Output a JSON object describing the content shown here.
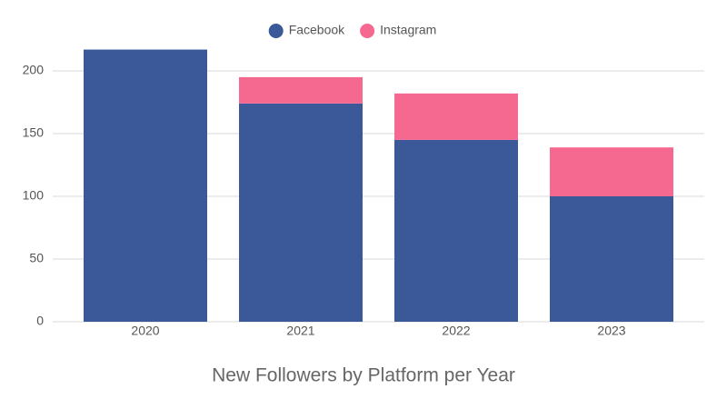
{
  "chart_data": {
    "type": "stacked-bar",
    "title": "New Followers by Platform per Year",
    "categories": [
      "2020",
      "2021",
      "2022",
      "2023"
    ],
    "series": [
      {
        "name": "Facebook",
        "color": "#3b5998",
        "values": [
          217,
          174,
          145,
          100
        ]
      },
      {
        "name": "Instagram",
        "color": "#f56991",
        "values": [
          0,
          21,
          37,
          39
        ]
      }
    ],
    "ylim": [
      0,
      220
    ],
    "yticks": [
      0,
      50,
      100,
      150,
      200
    ],
    "grid": true,
    "legend": "top"
  }
}
